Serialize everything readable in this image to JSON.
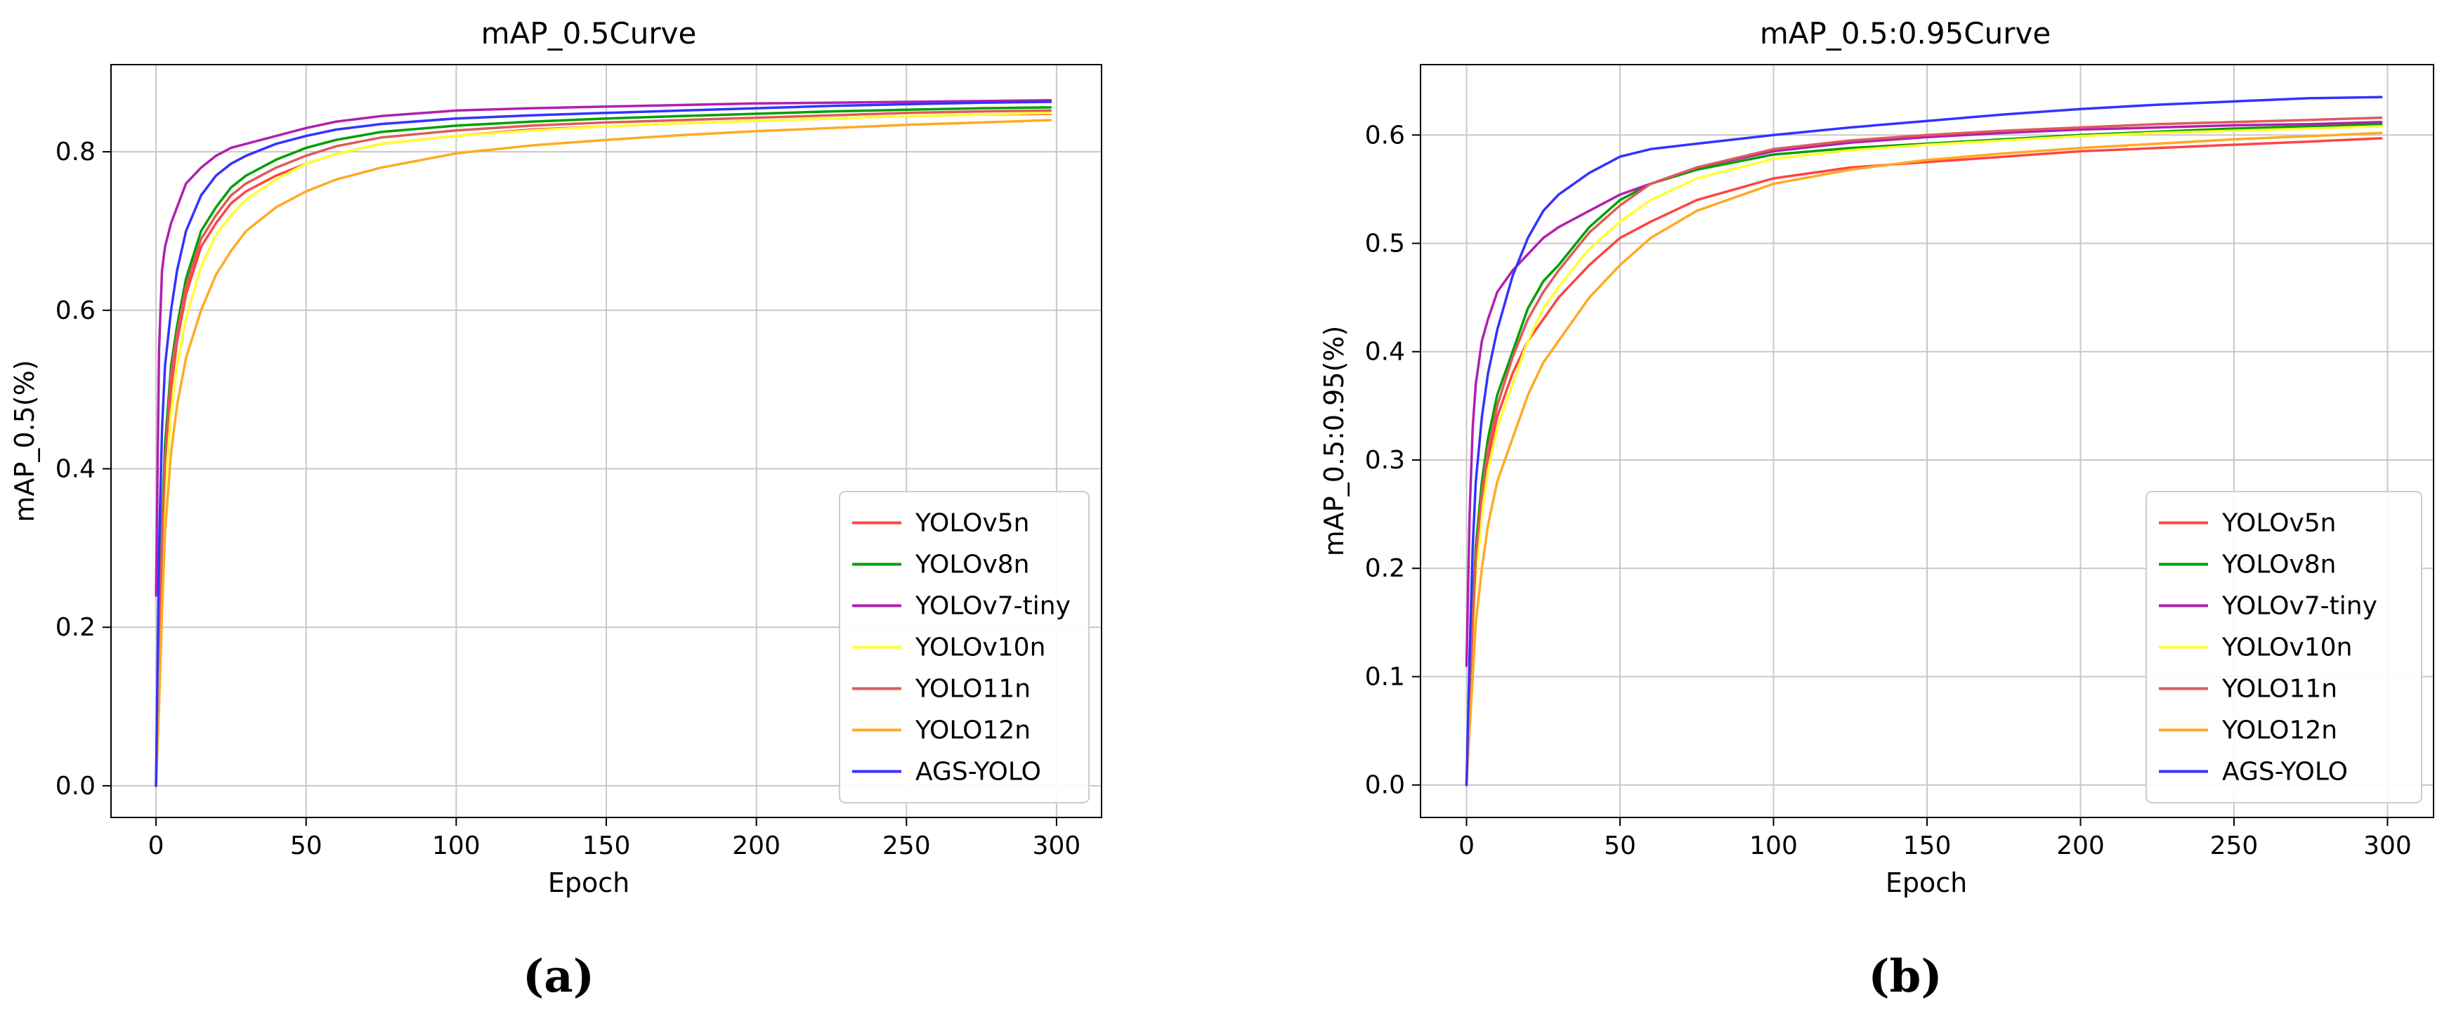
{
  "chart_data": [
    {
      "type": "line",
      "title": "mAP_0.5Curve",
      "xlabel": "Epoch",
      "ylabel": "mAP_0.5(%)",
      "caption": "(a)",
      "xlim": [
        -15,
        315
      ],
      "ylim": [
        -0.04,
        0.91
      ],
      "xticks": [
        0,
        50,
        100,
        150,
        200,
        250,
        300
      ],
      "yticks": [
        0.0,
        0.2,
        0.4,
        0.6,
        0.8
      ],
      "ytick_labels": [
        "0.0",
        "0.2",
        "0.4",
        "0.6",
        "0.8"
      ],
      "grid": true,
      "legend_position": "bottom-right",
      "x": [
        0,
        1,
        2,
        3,
        5,
        7,
        10,
        15,
        20,
        25,
        30,
        40,
        50,
        60,
        75,
        100,
        125,
        150,
        175,
        200,
        225,
        250,
        275,
        298
      ],
      "series": [
        {
          "name": "YOLOv5n",
          "color": "#ff4444",
          "values": [
            0.0,
            0.15,
            0.3,
            0.4,
            0.5,
            0.56,
            0.62,
            0.68,
            0.71,
            0.735,
            0.75,
            0.77,
            0.785,
            0.797,
            0.81,
            0.82,
            0.828,
            0.832,
            0.836,
            0.839,
            0.842,
            0.845,
            0.847,
            0.848
          ]
        },
        {
          "name": "YOLOv8n",
          "color": "#00a000",
          "values": [
            0.0,
            0.18,
            0.33,
            0.43,
            0.53,
            0.58,
            0.64,
            0.7,
            0.73,
            0.755,
            0.77,
            0.79,
            0.805,
            0.815,
            0.825,
            0.833,
            0.838,
            0.842,
            0.845,
            0.848,
            0.851,
            0.853,
            0.855,
            0.856
          ]
        },
        {
          "name": "YOLOv7-tiny",
          "color": "#b020b0",
          "values": [
            0.24,
            0.55,
            0.65,
            0.68,
            0.71,
            0.73,
            0.76,
            0.78,
            0.795,
            0.805,
            0.81,
            0.82,
            0.83,
            0.838,
            0.845,
            0.852,
            0.855,
            0.857,
            0.859,
            0.861,
            0.862,
            0.863,
            0.864,
            0.865
          ]
        },
        {
          "name": "YOLOv10n",
          "color": "#ffff33",
          "values": [
            0.0,
            0.12,
            0.27,
            0.37,
            0.47,
            0.53,
            0.59,
            0.655,
            0.695,
            0.72,
            0.74,
            0.765,
            0.785,
            0.797,
            0.81,
            0.82,
            0.827,
            0.832,
            0.836,
            0.839,
            0.842,
            0.845,
            0.847,
            0.849
          ]
        },
        {
          "name": "YOLO11n",
          "color": "#e05a5a",
          "values": [
            0.0,
            0.16,
            0.31,
            0.41,
            0.52,
            0.57,
            0.63,
            0.69,
            0.72,
            0.745,
            0.76,
            0.78,
            0.795,
            0.807,
            0.818,
            0.827,
            0.833,
            0.837,
            0.84,
            0.843,
            0.846,
            0.849,
            0.851,
            0.852
          ]
        },
        {
          "name": "YOLO12n",
          "color": "#ffaa22",
          "values": [
            0.0,
            0.1,
            0.22,
            0.32,
            0.42,
            0.48,
            0.54,
            0.6,
            0.645,
            0.675,
            0.7,
            0.73,
            0.75,
            0.765,
            0.78,
            0.798,
            0.808,
            0.815,
            0.821,
            0.826,
            0.83,
            0.834,
            0.837,
            0.84
          ]
        },
        {
          "name": "AGS-YOLO",
          "color": "#3333ff",
          "values": [
            0.0,
            0.3,
            0.45,
            0.53,
            0.6,
            0.65,
            0.7,
            0.745,
            0.77,
            0.785,
            0.795,
            0.81,
            0.82,
            0.828,
            0.835,
            0.842,
            0.846,
            0.849,
            0.852,
            0.855,
            0.858,
            0.86,
            0.862,
            0.863
          ]
        }
      ]
    },
    {
      "type": "line",
      "title": "mAP_0.5:0.95Curve",
      "xlabel": "Epoch",
      "ylabel": "mAP_0.5:0.95(%)",
      "caption": "(b)",
      "xlim": [
        -15,
        315
      ],
      "ylim": [
        -0.03,
        0.665
      ],
      "xticks": [
        0,
        50,
        100,
        150,
        200,
        250,
        300
      ],
      "yticks": [
        0.0,
        0.1,
        0.2,
        0.3,
        0.4,
        0.5,
        0.6
      ],
      "ytick_labels": [
        "0.0",
        "0.1",
        "0.2",
        "0.3",
        "0.4",
        "0.5",
        "0.6"
      ],
      "grid": true,
      "legend_position": "bottom-right",
      "x": [
        0,
        1,
        2,
        3,
        5,
        7,
        10,
        15,
        20,
        25,
        30,
        40,
        50,
        60,
        75,
        100,
        125,
        150,
        175,
        200,
        225,
        250,
        275,
        298
      ],
      "series": [
        {
          "name": "YOLOv5n",
          "color": "#ff4444",
          "values": [
            0.0,
            0.07,
            0.14,
            0.2,
            0.26,
            0.3,
            0.34,
            0.38,
            0.41,
            0.43,
            0.45,
            0.48,
            0.505,
            0.52,
            0.54,
            0.56,
            0.57,
            0.575,
            0.58,
            0.585,
            0.588,
            0.591,
            0.594,
            0.597
          ]
        },
        {
          "name": "YOLOv8n",
          "color": "#00a000",
          "values": [
            0.0,
            0.08,
            0.16,
            0.22,
            0.28,
            0.32,
            0.36,
            0.4,
            0.44,
            0.465,
            0.48,
            0.515,
            0.54,
            0.555,
            0.568,
            0.582,
            0.588,
            0.592,
            0.596,
            0.6,
            0.603,
            0.606,
            0.608,
            0.61
          ]
        },
        {
          "name": "YOLOv7-tiny",
          "color": "#b020b0",
          "values": [
            0.11,
            0.25,
            0.33,
            0.37,
            0.41,
            0.43,
            0.455,
            0.475,
            0.49,
            0.505,
            0.515,
            0.53,
            0.545,
            0.555,
            0.57,
            0.585,
            0.593,
            0.598,
            0.602,
            0.605,
            0.607,
            0.609,
            0.61,
            0.612
          ]
        },
        {
          "name": "YOLOv10n",
          "color": "#ffff33",
          "values": [
            0.0,
            0.06,
            0.13,
            0.19,
            0.25,
            0.29,
            0.33,
            0.37,
            0.41,
            0.44,
            0.46,
            0.495,
            0.52,
            0.54,
            0.56,
            0.578,
            0.586,
            0.591,
            0.595,
            0.599,
            0.602,
            0.604,
            0.606,
            0.608
          ]
        },
        {
          "name": "YOLO11n",
          "color": "#e05a5a",
          "values": [
            0.0,
            0.08,
            0.15,
            0.21,
            0.27,
            0.31,
            0.35,
            0.395,
            0.43,
            0.455,
            0.475,
            0.51,
            0.535,
            0.555,
            0.57,
            0.587,
            0.595,
            0.6,
            0.604,
            0.607,
            0.61,
            0.612,
            0.614,
            0.616
          ]
        },
        {
          "name": "YOLO12n",
          "color": "#ffaa22",
          "values": [
            0.0,
            0.05,
            0.1,
            0.15,
            0.2,
            0.24,
            0.28,
            0.32,
            0.36,
            0.39,
            0.41,
            0.45,
            0.48,
            0.505,
            0.53,
            0.555,
            0.568,
            0.577,
            0.583,
            0.588,
            0.592,
            0.596,
            0.599,
            0.602
          ]
        },
        {
          "name": "AGS-YOLO",
          "color": "#3333ff",
          "values": [
            0.0,
            0.12,
            0.22,
            0.28,
            0.34,
            0.38,
            0.42,
            0.47,
            0.505,
            0.53,
            0.545,
            0.565,
            0.58,
            0.587,
            0.592,
            0.6,
            0.607,
            0.613,
            0.619,
            0.624,
            0.628,
            0.631,
            0.634,
            0.635
          ]
        }
      ]
    }
  ]
}
